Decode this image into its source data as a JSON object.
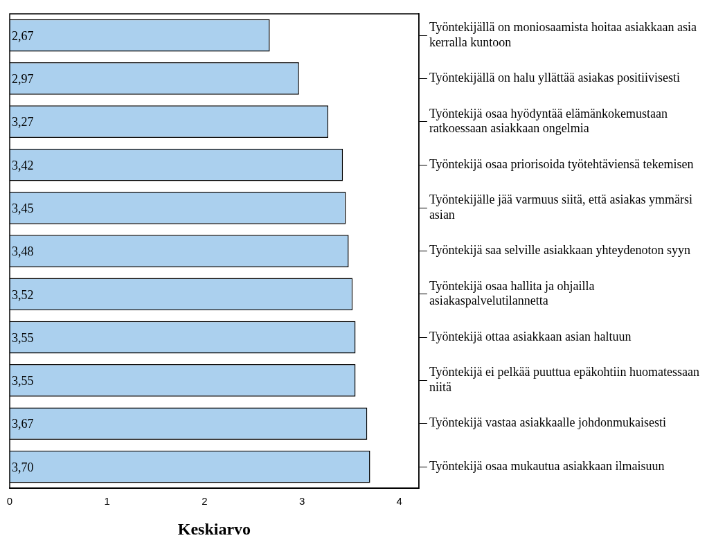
{
  "chart_data": {
    "type": "bar",
    "orientation": "horizontal",
    "xlabel": "Keskiarvo",
    "categories": [
      "Työntekijällä on moniosaamista hoitaa asiakkaan asia kerralla kuntoon",
      "Työntekijällä on halu yllättää asiakas positiivisesti",
      "Työntekijä osaa hyödyntää elämänkokemustaan ratkoessaan asiakkaan ongelmia",
      "Työntekijä osaa priorisoida työtehtäviensä tekemisen",
      "Työntekijälle jää varmuus siitä, että asiakas ymmärsi asian",
      "Työntekijä saa selville asiakkaan yhteydenoton syyn",
      "Työntekijä osaa hallita ja ohjailla asiakaspalvelutilannetta",
      "Työntekijä ottaa asiakkaan asian haltuun",
      "Työntekijä ei pelkää puuttua epäkohtiin huomatessaan niitä",
      "Työntekijä vastaa asiakkaalle johdonmukaisesti",
      "Työntekijä osaa mukautua asiakkaan ilmaisuun"
    ],
    "values": [
      2.67,
      2.97,
      3.27,
      3.42,
      3.45,
      3.48,
      3.52,
      3.55,
      3.55,
      3.67,
      3.7
    ],
    "value_labels": [
      "2,67",
      "2,97",
      "3,27",
      "3,42",
      "3,45",
      "3,48",
      "3,52",
      "3,55",
      "3,55",
      "3,67",
      "3,70"
    ],
    "color": "#abd0ee",
    "xlim": [
      0,
      4.2
    ],
    "xticks": [
      0,
      1,
      2,
      3,
      4
    ],
    "grid": false,
    "legend": false
  }
}
